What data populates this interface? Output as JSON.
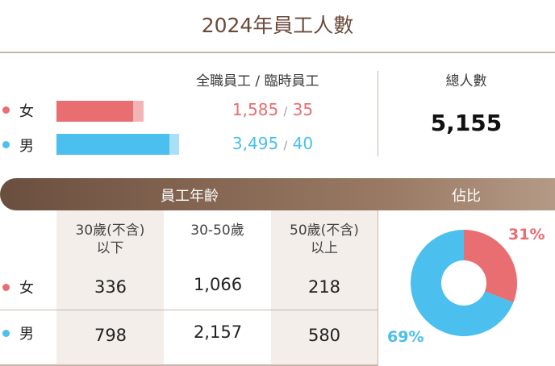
{
  "title": "2024年員工人數",
  "headcount_header": "全職員工 / 臨時員工",
  "total_header": "總人數",
  "total_value": "5,155",
  "female": {
    "label": "女",
    "fulltime": "1,585",
    "temp": "35",
    "color": "#e96e72",
    "color_light": "#f3a8aa"
  },
  "male": {
    "label": "男",
    "fulltime": "3,495",
    "temp": "40",
    "color": "#4bbfee",
    "color_light": "#a7e0f7"
  },
  "separator": "/",
  "age_banner": "員工年齡",
  "share_banner": "佔比",
  "age_columns": [
    {
      "line1": "30歲(不含)",
      "line2": "以下"
    },
    {
      "line1": "30-50歲",
      "line2": ""
    },
    {
      "line1": "50歲(不含)",
      "line2": "以上"
    }
  ],
  "age_rows": [
    {
      "label": "女",
      "values": [
        "336",
        "1,066",
        "218"
      ]
    },
    {
      "label": "男",
      "values": [
        "798",
        "2,157",
        "580"
      ]
    }
  ],
  "share": {
    "female_pct": "31%",
    "male_pct": "69%",
    "female": 0.31,
    "male": 0.69
  }
}
